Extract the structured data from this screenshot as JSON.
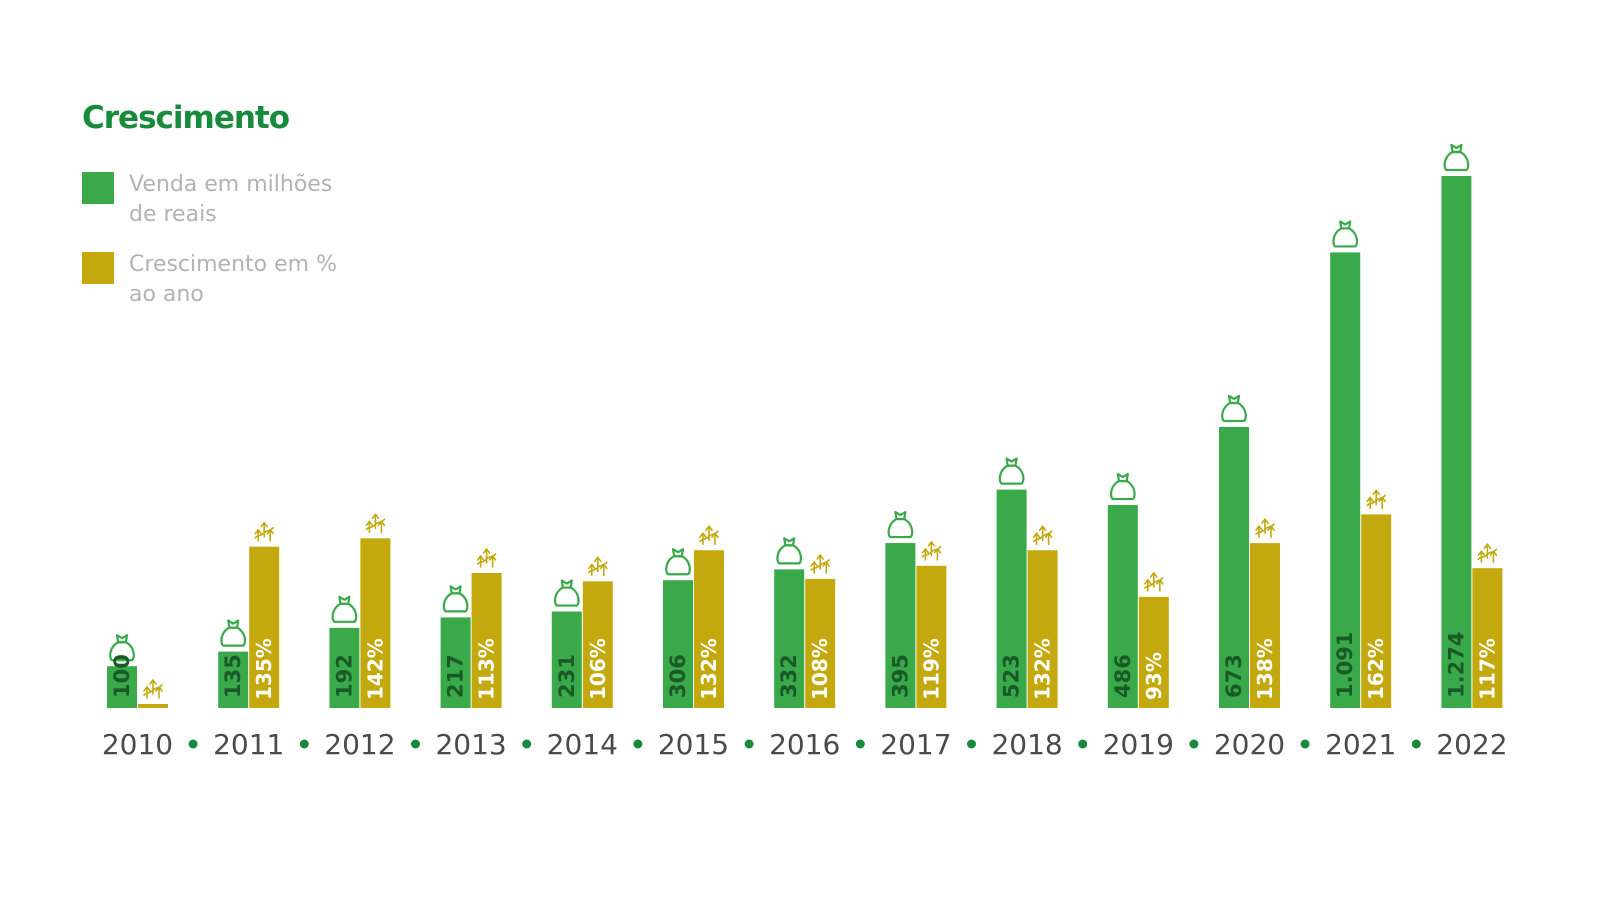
{
  "chart_data": {
    "type": "bar",
    "title": "Crescimento",
    "categories": [
      "2010",
      "2011",
      "2012",
      "2013",
      "2014",
      "2015",
      "2016",
      "2017",
      "2018",
      "2019",
      "2020",
      "2021",
      "2022"
    ],
    "series": [
      {
        "name": "Venda em milhões de reais",
        "color": "#39a949",
        "icon": "money-bag-icon",
        "values": [
          100,
          135,
          192,
          217,
          231,
          306,
          332,
          395,
          523,
          486,
          673,
          1091,
          1274
        ],
        "labels": [
          "100",
          "135",
          "192",
          "217",
          "231",
          "306",
          "332",
          "395",
          "523",
          "486",
          "673",
          "1.091",
          "1.274"
        ]
      },
      {
        "name": "Crescimento em % ao ano",
        "color": "#c3a90d",
        "icon": "growth-arrows-icon",
        "values": [
          null,
          135,
          142,
          113,
          106,
          132,
          108,
          119,
          132,
          93,
          138,
          162,
          117
        ],
        "labels": [
          "",
          "135%",
          "142%",
          "113%",
          "106%",
          "132%",
          "108%",
          "119%",
          "132%",
          "93%",
          "138%",
          "162%",
          "117%"
        ]
      }
    ],
    "legend_position": "top-left",
    "grid": false,
    "xlabel": "",
    "ylabel": ""
  },
  "colors": {
    "title": "#178a3c",
    "sales": "#39a949",
    "growth": "#c3a90d",
    "sales_text": "#1a5a28",
    "growth_text": "#ffffff",
    "year_text": "#4a4a4a",
    "separator_dot": "#178a3c",
    "legend_text": "#b3b3b3"
  }
}
